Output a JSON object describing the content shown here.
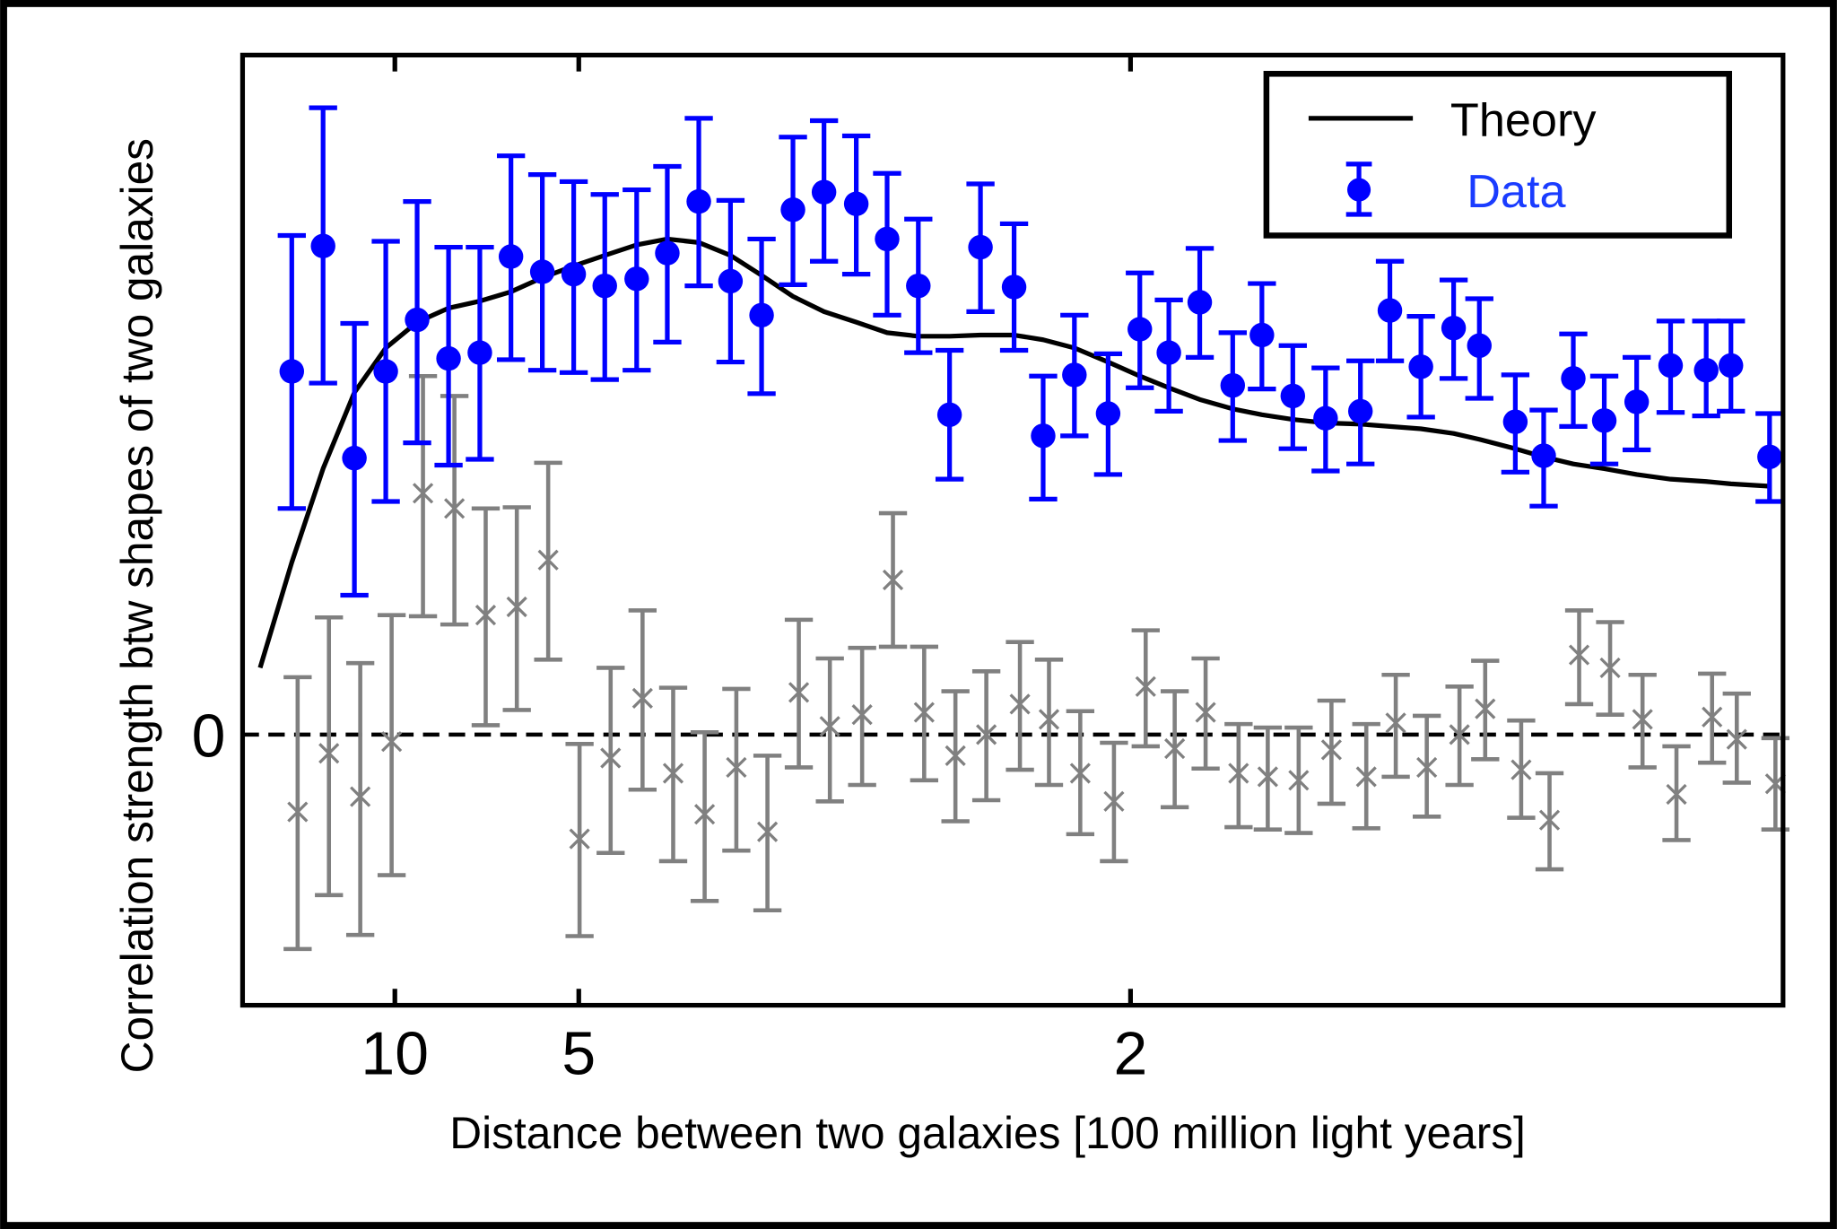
{
  "chart_data": {
    "type": "scatter",
    "title": "",
    "xlabel": "Distance between two galaxies [100 million light years]",
    "ylabel": "Correlation strength btw shapes of two galaxies",
    "x_scale": "reciprocal",
    "xlim": [
      58.1,
      1.17
    ],
    "ylim": [
      -2.31,
      5.8
    ],
    "x_ticks": [
      10,
      5,
      2
    ],
    "x_tick_labels": [
      "10",
      "5",
      "2"
    ],
    "y_ticks": [
      0
    ],
    "y_tick_labels": [
      "0"
    ],
    "zero_line": "dashed",
    "grid": false,
    "legend": {
      "placement": "top-right",
      "entries": [
        "Theory",
        "Data"
      ]
    },
    "colors": {
      "theory": "#000000",
      "data": "#0000ff",
      "null_test": "#808080",
      "frame": "#000000"
    },
    "series": [
      {
        "name": "Theory",
        "kind": "line",
        "x": [
          37.4,
          22.75,
          16.4,
          12.82,
          10.52,
          8.92,
          7.74,
          6.84,
          6.13,
          5.55,
          5.07,
          4.67,
          4.32,
          4.03,
          3.77,
          3.54,
          3.34,
          3.16,
          3.0,
          2.85,
          2.72,
          2.6,
          2.49,
          2.39,
          2.29,
          2.21,
          2.13,
          2.05,
          1.98,
          1.92,
          1.86,
          1.8,
          1.75,
          1.7,
          1.65,
          1.6,
          1.56,
          1.52,
          1.48,
          1.45,
          1.41,
          1.38,
          1.35,
          1.32,
          1.29,
          1.26,
          1.23,
          1.21,
          1.18
        ],
        "y": [
          0.57,
          1.47,
          2.27,
          2.92,
          3.3,
          3.52,
          3.64,
          3.7,
          3.78,
          3.9,
          4.0,
          4.09,
          4.18,
          4.23,
          4.2,
          4.09,
          3.92,
          3.74,
          3.61,
          3.52,
          3.43,
          3.4,
          3.4,
          3.41,
          3.41,
          3.37,
          3.3,
          3.18,
          3.06,
          2.96,
          2.86,
          2.78,
          2.73,
          2.69,
          2.66,
          2.65,
          2.63,
          2.61,
          2.57,
          2.52,
          2.44,
          2.37,
          2.31,
          2.27,
          2.22,
          2.18,
          2.16,
          2.14,
          2.12
        ]
      },
      {
        "name": "Data",
        "kind": "errorbar",
        "marker": "circle",
        "x": [
          22.75,
          16.4,
          12.82,
          10.52,
          8.92,
          7.74,
          6.84,
          6.13,
          5.55,
          5.07,
          4.67,
          4.32,
          4.03,
          3.77,
          3.54,
          3.34,
          3.16,
          3.0,
          2.85,
          2.72,
          2.6,
          2.49,
          2.39,
          2.29,
          2.21,
          2.13,
          2.05,
          1.98,
          1.92,
          1.86,
          1.8,
          1.75,
          1.7,
          1.65,
          1.6,
          1.56,
          1.52,
          1.48,
          1.45,
          1.41,
          1.38,
          1.35,
          1.32,
          1.29,
          1.26,
          1.23,
          1.21,
          1.18
        ],
        "y": [
          3.1,
          4.17,
          2.36,
          3.1,
          3.54,
          3.21,
          3.26,
          4.08,
          3.95,
          3.93,
          3.83,
          3.89,
          4.11,
          4.55,
          3.87,
          3.58,
          4.48,
          4.63,
          4.53,
          4.23,
          3.83,
          2.73,
          4.16,
          3.82,
          2.55,
          3.07,
          2.74,
          3.46,
          3.26,
          3.69,
          2.98,
          3.41,
          2.89,
          2.7,
          2.76,
          3.62,
          3.14,
          3.47,
          3.32,
          2.67,
          2.38,
          3.04,
          2.68,
          2.84,
          3.15,
          3.11,
          3.15,
          2.37
        ],
        "y_low": [
          1.93,
          3.0,
          1.19,
          1.99,
          2.49,
          2.3,
          2.35,
          3.2,
          3.11,
          3.09,
          3.03,
          3.11,
          3.35,
          3.83,
          3.18,
          2.91,
          3.84,
          4.04,
          3.93,
          3.58,
          3.26,
          2.18,
          3.61,
          3.28,
          2.01,
          2.55,
          2.22,
          2.96,
          2.76,
          3.22,
          2.51,
          2.95,
          2.44,
          2.25,
          2.31,
          3.19,
          2.71,
          3.04,
          2.87,
          2.24,
          1.95,
          2.63,
          2.31,
          2.43,
          2.75,
          2.72,
          2.76,
          1.99
        ],
        "y_high": [
          4.26,
          5.35,
          3.51,
          4.21,
          4.55,
          4.16,
          4.16,
          4.94,
          4.78,
          4.72,
          4.61,
          4.65,
          4.85,
          5.26,
          4.56,
          4.23,
          5.1,
          5.24,
          5.11,
          4.79,
          4.4,
          3.28,
          4.7,
          4.36,
          3.06,
          3.58,
          3.25,
          3.94,
          3.71,
          4.15,
          3.43,
          3.85,
          3.32,
          3.13,
          3.19,
          4.04,
          3.57,
          3.88,
          3.72,
          3.07,
          2.77,
          3.42,
          3.06,
          3.22,
          3.53,
          3.53,
          3.53,
          2.74
        ]
      },
      {
        "kind": "errorbar",
        "marker": "x",
        "x": [
          22.75,
          16.4,
          12.82,
          10.52,
          8.92,
          7.74,
          6.84,
          6.13,
          5.55,
          5.07,
          4.67,
          4.32,
          4.03,
          3.77,
          3.54,
          3.34,
          3.16,
          3.0,
          2.85,
          2.72,
          2.6,
          2.49,
          2.39,
          2.29,
          2.21,
          2.13,
          2.05,
          1.98,
          1.92,
          1.86,
          1.8,
          1.75,
          1.7,
          1.65,
          1.6,
          1.56,
          1.52,
          1.48,
          1.45,
          1.41,
          1.38,
          1.35,
          1.32,
          1.29,
          1.26,
          1.23,
          1.21,
          1.18
        ],
        "y": [
          -0.66,
          -0.16,
          -0.53,
          -0.06,
          2.06,
          1.93,
          1.02,
          1.09,
          1.49,
          -0.89,
          -0.2,
          0.31,
          -0.33,
          -0.68,
          -0.28,
          -0.83,
          0.36,
          0.07,
          0.17,
          1.32,
          0.19,
          -0.18,
          0.0,
          0.26,
          0.13,
          -0.33,
          -0.57,
          0.41,
          -0.12,
          0.19,
          -0.33,
          -0.36,
          -0.39,
          -0.13,
          -0.36,
          0.1,
          -0.28,
          0.0,
          0.22,
          -0.3,
          -0.73,
          0.68,
          0.57,
          0.13,
          -0.51,
          0.15,
          -0.04,
          -0.42
        ],
        "y_low": [
          -1.83,
          -1.37,
          -1.71,
          -1.2,
          1.01,
          0.94,
          0.08,
          0.21,
          0.64,
          -1.72,
          -1.01,
          -0.47,
          -1.08,
          -1.42,
          -0.99,
          -1.5,
          -0.28,
          -0.57,
          -0.43,
          0.75,
          -0.39,
          -0.74,
          -0.56,
          -0.3,
          -0.43,
          -0.85,
          -1.08,
          -0.1,
          -0.62,
          -0.29,
          -0.79,
          -0.81,
          -0.84,
          -0.59,
          -0.8,
          -0.36,
          -0.7,
          -0.43,
          -0.21,
          -0.71,
          -1.15,
          0.26,
          0.17,
          -0.28,
          -0.9,
          -0.24,
          -0.41,
          -0.81
        ],
        "y_high": [
          0.49,
          1.0,
          0.61,
          1.02,
          3.06,
          2.89,
          1.93,
          1.94,
          2.32,
          -0.08,
          0.57,
          1.06,
          0.4,
          0.02,
          0.39,
          -0.18,
          0.98,
          0.65,
          0.74,
          1.89,
          0.75,
          0.37,
          0.54,
          0.79,
          0.64,
          0.2,
          -0.07,
          0.89,
          0.37,
          0.65,
          0.09,
          0.06,
          0.06,
          0.29,
          0.09,
          0.51,
          0.16,
          0.41,
          0.63,
          0.12,
          -0.33,
          1.06,
          0.96,
          0.51,
          -0.1,
          0.52,
          0.35,
          -0.03
        ]
      }
    ]
  }
}
